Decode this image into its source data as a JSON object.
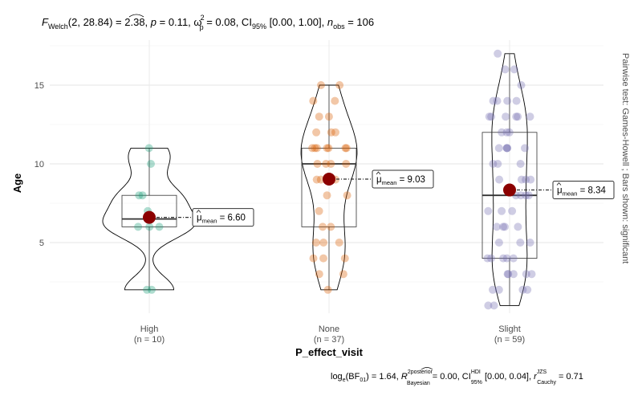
{
  "chart_data": {
    "type": "violin-box-scatter",
    "xlabel": "P_effect_visit",
    "ylabel": "Age",
    "ylim": [
      0.5,
      17.6
    ],
    "yticks": [
      5,
      10,
      15
    ],
    "grid": true,
    "categories": [
      "High",
      "None",
      "Slight"
    ],
    "n_labels": [
      "(n = 10)",
      "(n = 37)",
      "(n = 59)"
    ],
    "colors": [
      "#1b9e77",
      "#d95f02",
      "#7570b3"
    ],
    "mean_color": "#8b0000",
    "means": [
      6.6,
      9.03,
      8.34
    ],
    "mean_labels": [
      "6.60",
      "9.03",
      "8.34"
    ],
    "mean_label_prefix": "μ",
    "mean_label_sub": "mean",
    "values": [
      [
        11,
        10,
        8,
        8,
        7,
        6,
        6,
        6,
        2,
        2
      ],
      [
        15,
        15,
        14,
        14,
        13,
        13,
        12,
        12,
        12,
        11,
        11,
        11,
        11,
        11,
        11,
        11,
        10,
        10,
        10,
        10,
        9,
        9,
        9,
        8,
        8,
        7,
        6,
        6,
        5,
        5,
        5,
        4,
        4,
        4,
        3,
        3,
        2
      ],
      [
        17,
        16,
        16,
        15,
        14,
        14,
        14,
        14,
        13,
        13,
        13,
        13,
        13,
        13,
        12,
        12,
        12,
        11,
        11,
        11,
        11,
        11,
        10,
        10,
        10,
        9,
        9,
        9,
        9,
        8,
        8,
        8,
        8,
        7,
        7,
        7,
        6,
        6,
        6,
        6,
        5,
        5,
        5,
        4,
        4,
        4,
        4,
        4,
        3,
        3,
        3,
        3,
        3,
        2,
        2,
        2,
        2,
        1,
        1
      ]
    ],
    "subtitle": {
      "f": "F",
      "f_sub": "Welch",
      "stat": "(2, 28.84) = 2.38, ",
      "p": "p",
      "p_val": " = 0.11, ",
      "omega": "ω",
      "omega_sup": "2",
      "omega_sub": "p",
      "omega_val": " = 0.08, CI",
      "ci_sub": "95%",
      "ci_val": " [0.00, 1.00], ",
      "n": "n",
      "n_sub": "obs",
      "n_val": " = 106"
    },
    "caption": {
      "log": "log",
      "log_sub": "e",
      "bf": "(BF",
      "bf_sub": "01",
      "bf_val": ") = 1.64, ",
      "r": "R",
      "r_sup": "2posterior",
      "r_sub": "Bayesian",
      "r_val": " = 0.00, CI",
      "ci_sup": "HDI",
      "ci_sub": "95%",
      "ci_val": " [0.00, 0.04], ",
      "rc": "r",
      "rc_sup": "JZS",
      "rc_sub": "Cauchy",
      "rc_val": " = 0.71"
    },
    "side_note": "Pairwise test: Games-Howell ; Bars shown: significant"
  }
}
